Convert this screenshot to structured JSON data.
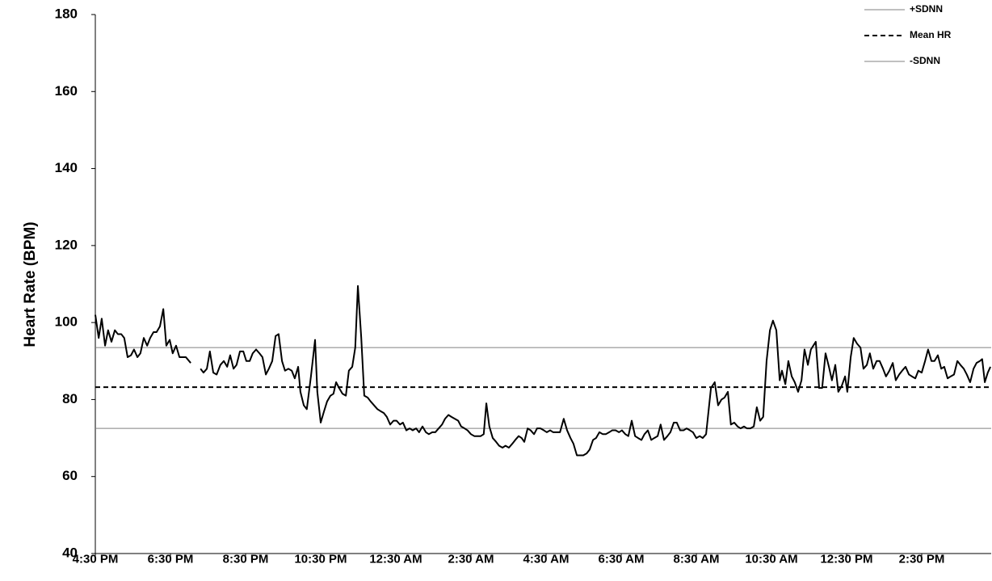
{
  "chart_data": {
    "type": "line",
    "y_label": "Heart Rate (BPM)",
    "color": "#000000",
    "xlim": [
      0,
      23.85
    ],
    "ylim": [
      40,
      180
    ],
    "yticks": [
      40,
      60,
      80,
      100,
      120,
      140,
      160,
      180
    ],
    "xticks": [
      {
        "value": 0,
        "label": "4:30 PM"
      },
      {
        "value": 2,
        "label": "6:30 PM"
      },
      {
        "value": 4,
        "label": "8:30 PM"
      },
      {
        "value": 6,
        "label": "10:30 PM"
      },
      {
        "value": 8,
        "label": "12:30 AM"
      },
      {
        "value": 10,
        "label": "2:30 AM"
      },
      {
        "value": 12,
        "label": "4:30 AM"
      },
      {
        "value": 14,
        "label": "6:30 AM"
      },
      {
        "value": 16,
        "label": "8:30 AM"
      },
      {
        "value": 18,
        "label": "10:30 AM"
      },
      {
        "value": 20,
        "label": "12:30 PM"
      },
      {
        "value": 22,
        "label": "2:30 PM"
      }
    ],
    "legend": "top-right",
    "reference_lines": [
      {
        "name": "+SDNN",
        "value": 93.5,
        "color": "#808080",
        "dashed": false
      },
      {
        "name": "Mean HR",
        "value": 83.2,
        "color": "#000000",
        "dashed": true
      },
      {
        "name": "-SDNN",
        "value": 72.5,
        "color": "#808080",
        "dashed": false
      }
    ],
    "x": [
      0,
      0.09,
      0.17,
      0.26,
      0.34,
      0.43,
      0.52,
      0.6,
      0.69,
      0.77,
      0.86,
      0.95,
      1.03,
      1.12,
      1.2,
      1.29,
      1.38,
      1.46,
      1.55,
      1.63,
      1.72,
      1.81,
      1.89,
      1.98,
      2.06,
      2.15,
      2.24,
      2.32,
      2.41,
      2.54,
      2.67,
      2.8,
      2.88,
      2.97,
      3.05,
      3.14,
      3.23,
      3.33,
      3.42,
      3.51,
      3.59,
      3.68,
      3.76,
      3.85,
      3.94,
      4.02,
      4.11,
      4.19,
      4.28,
      4.37,
      4.45,
      4.54,
      4.62,
      4.71,
      4.8,
      4.88,
      4.97,
      5.05,
      5.14,
      5.23,
      5.31,
      5.4,
      5.46,
      5.55,
      5.63,
      5.74,
      5.85,
      5.91,
      6,
      6.09,
      6.17,
      6.26,
      6.34,
      6.41,
      6.49,
      6.58,
      6.67,
      6.75,
      6.84,
      6.92,
      6.99,
      7.08,
      7.16,
      7.25,
      7.33,
      7.42,
      7.51,
      7.59,
      7.68,
      7.76,
      7.85,
      7.94,
      8.02,
      8.11,
      8.19,
      8.28,
      8.37,
      8.45,
      8.54,
      8.62,
      8.71,
      8.8,
      8.88,
      8.97,
      9.05,
      9.14,
      9.23,
      9.31,
      9.4,
      9.48,
      9.57,
      9.66,
      9.74,
      9.83,
      9.91,
      10,
      10.09,
      10.17,
      10.26,
      10.34,
      10.41,
      10.49,
      10.58,
      10.67,
      10.75,
      10.84,
      10.92,
      11.01,
      11.1,
      11.18,
      11.27,
      11.35,
      11.42,
      11.51,
      11.59,
      11.68,
      11.76,
      11.85,
      11.94,
      12.02,
      12.11,
      12.19,
      12.28,
      12.37,
      12.47,
      12.56,
      12.65,
      12.73,
      12.82,
      12.9,
      12.99,
      13.08,
      13.16,
      13.25,
      13.33,
      13.42,
      13.51,
      13.59,
      13.68,
      13.76,
      13.85,
      13.94,
      14.02,
      14.11,
      14.19,
      14.28,
      14.37,
      14.45,
      14.54,
      14.62,
      14.71,
      14.8,
      14.88,
      14.97,
      15.05,
      15.14,
      15.23,
      15.31,
      15.4,
      15.48,
      15.57,
      15.66,
      15.74,
      15.83,
      15.91,
      16,
      16.09,
      16.17,
      16.26,
      16.39,
      16.49,
      16.58,
      16.67,
      16.75,
      16.84,
      16.92,
      17.01,
      17.1,
      17.18,
      17.27,
      17.35,
      17.44,
      17.53,
      17.61,
      17.7,
      17.78,
      17.87,
      17.96,
      18.04,
      18.13,
      18.22,
      18.28,
      18.37,
      18.45,
      18.54,
      18.62,
      18.71,
      18.8,
      18.88,
      18.97,
      19.05,
      19.18,
      19.27,
      19.35,
      19.44,
      19.53,
      19.61,
      19.7,
      19.78,
      19.87,
      19.96,
      20.02,
      20.11,
      20.19,
      20.28,
      20.37,
      20.45,
      20.54,
      20.62,
      20.71,
      20.8,
      20.88,
      20.97,
      21.05,
      21.14,
      21.23,
      21.31,
      21.4,
      21.48,
      21.57,
      21.66,
      21.74,
      21.83,
      21.91,
      22,
      22.09,
      22.17,
      22.26,
      22.34,
      22.43,
      22.52,
      22.6,
      22.69,
      22.77,
      22.86,
      22.95,
      23.03,
      23.12,
      23.2,
      23.29,
      23.38,
      23.46,
      23.55,
      23.61,
      23.68,
      23.76,
      23.83
    ],
    "values": [
      102,
      96,
      101,
      94,
      98,
      95,
      98,
      97,
      97,
      96,
      91,
      91.5,
      93,
      91,
      92,
      96,
      94,
      96,
      97.5,
      97.5,
      99,
      103.5,
      94,
      95.5,
      92,
      94,
      91,
      91,
      91,
      89.5,
      null,
      88,
      87,
      88,
      92.5,
      87,
      86.5,
      89,
      90,
      88.5,
      91.5,
      88,
      89,
      92.5,
      92.5,
      90,
      90,
      92,
      93,
      92,
      91,
      86.5,
      88,
      90,
      96.5,
      97,
      90,
      87.5,
      88,
      87.5,
      85.5,
      88.5,
      82,
      78.5,
      77.5,
      86,
      95.5,
      82,
      74,
      77,
      79.5,
      81,
      81.5,
      84.5,
      83,
      81.5,
      81,
      87.5,
      88.5,
      93.5,
      109.5,
      96,
      81,
      80.5,
      79.5,
      78.5,
      77.5,
      77,
      76.5,
      75.5,
      73.5,
      74.5,
      74.5,
      73.5,
      74,
      72,
      72.5,
      72,
      72.5,
      71.5,
      73,
      71.5,
      71,
      71.5,
      71.5,
      72.5,
      73.5,
      75,
      76,
      75.5,
      75,
      74.5,
      73,
      72.5,
      72,
      71,
      70.5,
      70.5,
      70.5,
      71,
      79,
      73,
      70,
      69,
      68,
      67.5,
      68,
      67.5,
      68.5,
      69.5,
      70.5,
      70,
      69,
      72.5,
      72,
      71,
      72.5,
      72.5,
      72,
      71.5,
      72,
      71.5,
      71.5,
      71.5,
      75,
      72,
      70,
      68.5,
      65.5,
      65.5,
      65.5,
      66,
      67,
      69.5,
      70,
      71.5,
      71,
      71,
      71.5,
      72,
      72,
      71.5,
      72,
      71,
      70.5,
      74.5,
      70.5,
      70,
      69.5,
      71,
      72,
      69.5,
      70,
      70.5,
      73.5,
      69.5,
      70.5,
      71.5,
      74,
      74,
      72,
      72,
      72.5,
      72,
      71.5,
      70,
      70.5,
      70,
      71,
      83,
      84.5,
      78.5,
      80,
      80.5,
      82,
      73.5,
      74,
      73,
      72.5,
      73,
      72.5,
      72.5,
      73,
      78,
      74.5,
      75.5,
      90,
      98,
      100.5,
      98,
      85,
      87.5,
      84,
      90,
      86,
      84.5,
      82,
      85,
      93,
      89,
      93,
      95,
      83,
      83,
      92,
      88.5,
      85,
      89,
      82,
      83.5,
      86,
      82,
      91,
      96,
      94.5,
      93.5,
      88,
      89,
      92,
      88,
      90,
      90,
      88,
      86,
      87.5,
      89.5,
      85,
      86.5,
      87.5,
      88.5,
      86.5,
      86,
      85.5,
      87.5,
      87,
      90,
      93,
      90,
      90,
      91.5,
      88,
      88.5,
      85.5,
      86,
      86.5,
      90,
      89,
      88,
      86.5,
      84.5,
      88,
      89.5,
      90,
      90.5,
      84.5,
      87,
      88.5
    ]
  }
}
